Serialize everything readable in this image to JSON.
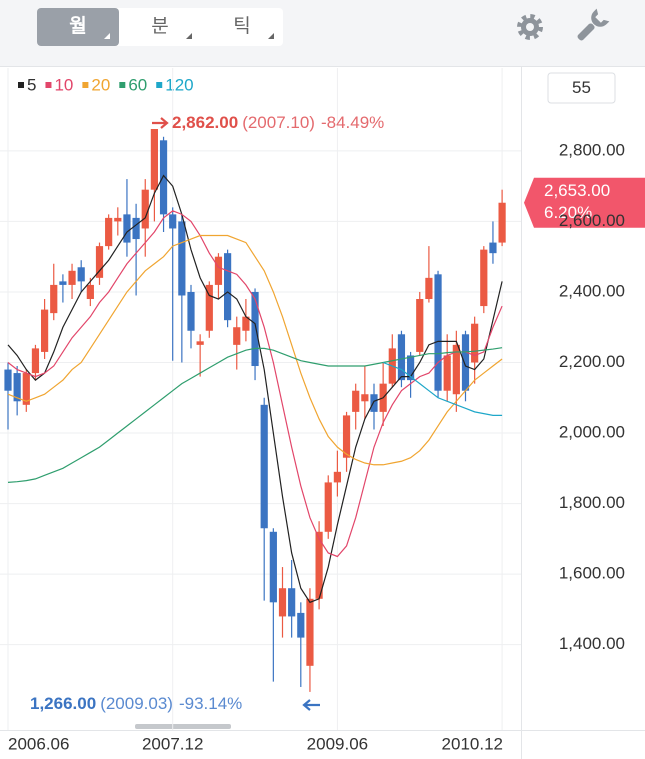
{
  "tabs": [
    "월",
    "분",
    "틱"
  ],
  "count": 55,
  "chart_data": {
    "type": "candlestick",
    "categories": [
      "2006.06",
      null,
      null,
      null,
      null,
      null,
      null,
      null,
      null,
      null,
      null,
      null,
      null,
      null,
      null,
      null,
      null,
      null,
      "2007.12",
      null,
      null,
      null,
      null,
      null,
      null,
      null,
      null,
      null,
      null,
      null,
      null,
      null,
      null,
      null,
      null,
      null,
      "2009.06",
      null,
      null,
      null,
      null,
      null,
      null,
      null,
      null,
      null,
      null,
      null,
      null,
      null,
      null,
      null,
      null,
      null,
      "2010.12"
    ],
    "open": [
      2180,
      2170,
      2080,
      2170,
      2230,
      2340,
      2430,
      2420,
      2470,
      2380,
      2440,
      2530,
      2600,
      2620,
      2610,
      2580,
      2690,
      2830,
      2620,
      2600,
      2400,
      2250,
      2290,
      2420,
      2510,
      2250,
      2290,
      2400,
      2080,
      1720,
      1480,
      1560,
      1490,
      1340,
      1530,
      1720,
      1860,
      1930,
      2060,
      2090,
      2110,
      2060,
      2140,
      2280,
      2220,
      2230,
      2380,
      2450,
      2120,
      2110,
      2280,
      2200,
      2360,
      2540,
      2540
    ],
    "high": [
      2200,
      2190,
      2180,
      2250,
      2380,
      2480,
      2450,
      2480,
      2490,
      2440,
      2540,
      2620,
      2640,
      2720,
      2650,
      2720,
      2862,
      2840,
      2640,
      2620,
      2420,
      2280,
      2430,
      2510,
      2520,
      2330,
      2380,
      2410,
      2100,
      1730,
      1620,
      1640,
      1520,
      1560,
      1750,
      1880,
      1950,
      2060,
      2140,
      2190,
      2140,
      2200,
      2280,
      2290,
      2230,
      2400,
      2530,
      2460,
      2280,
      2290,
      2290,
      2330,
      2530,
      2600,
      2690
    ],
    "low": [
      2010,
      2050,
      2060,
      2150,
      2210,
      2320,
      2370,
      2380,
      2400,
      2360,
      2420,
      2520,
      2560,
      2500,
      2390,
      2500,
      2600,
      2570,
      2205,
      2200,
      2240,
      2160,
      2270,
      2380,
      2300,
      2180,
      2260,
      2150,
      1525,
      1295,
      1420,
      1420,
      1280,
      1266,
      1500,
      1700,
      1820,
      1890,
      2010,
      2040,
      2010,
      2020,
      2130,
      2130,
      2100,
      2220,
      2370,
      2100,
      2090,
      2060,
      2090,
      2140,
      2340,
      2480,
      2530
    ],
    "close": [
      2120,
      2090,
      2170,
      2240,
      2350,
      2420,
      2420,
      2460,
      2430,
      2420,
      2530,
      2610,
      2610,
      2540,
      2550,
      2690,
      2862,
      2620,
      2580,
      2390,
      2290,
      2260,
      2420,
      2500,
      2320,
      2300,
      2330,
      2190,
      1730,
      1520,
      1560,
      1480,
      1420,
      1530,
      1720,
      1860,
      1890,
      2050,
      2120,
      2110,
      2060,
      2140,
      2240,
      2150,
      2150,
      2380,
      2440,
      2120,
      2220,
      2250,
      2120,
      2310,
      2520,
      2510,
      2653
    ],
    "up_color": "#eb5a43",
    "down_color": "#3b74c2",
    "series": [
      {
        "name": "5",
        "color": "#222222",
        "values": [
          2250,
          2220,
          2180,
          2150,
          2170,
          2230,
          2300,
          2350,
          2400,
          2430,
          2460,
          2490,
          2530,
          2570,
          2590,
          2610,
          2680,
          2730,
          2700,
          2620,
          2520,
          2440,
          2390,
          2380,
          2400,
          2380,
          2330,
          2310,
          2180,
          2000,
          1820,
          1660,
          1560,
          1520,
          1530,
          1620,
          1740,
          1850,
          1960,
          2040,
          2090,
          2100,
          2130,
          2160,
          2160,
          2200,
          2250,
          2260,
          2260,
          2260,
          2190,
          2180,
          2210,
          2320,
          2430
        ]
      },
      {
        "name": "10",
        "color": "#e2466a",
        "values": [
          2200,
          2180,
          2170,
          2160,
          2170,
          2190,
          2230,
          2270,
          2300,
          2330,
          2370,
          2400,
          2440,
          2480,
          2510,
          2540,
          2570,
          2610,
          2630,
          2620,
          2600,
          2560,
          2510,
          2470,
          2460,
          2450,
          2420,
          2380,
          2300,
          2200,
          2080,
          1960,
          1850,
          1760,
          1700,
          1660,
          1650,
          1680,
          1760,
          1860,
          1960,
          2030,
          2080,
          2120,
          2140,
          2160,
          2170,
          2200,
          2220,
          2230,
          2230,
          2220,
          2230,
          2300,
          2360
        ]
      },
      {
        "name": "20",
        "color": "#f0a531",
        "values": [
          2110,
          2100,
          2090,
          2100,
          2110,
          2130,
          2150,
          2180,
          2200,
          2240,
          2280,
          2320,
          2360,
          2400,
          2430,
          2460,
          2480,
          2500,
          2530,
          2540,
          2550,
          2560,
          2560,
          2560,
          2560,
          2550,
          2540,
          2500,
          2460,
          2400,
          2330,
          2250,
          2170,
          2100,
          2040,
          1990,
          1960,
          1940,
          1925,
          1915,
          1910,
          1910,
          1915,
          1920,
          1930,
          1950,
          1980,
          2020,
          2060,
          2090,
          2120,
          2150,
          2170,
          2190,
          2210
        ]
      },
      {
        "name": "60",
        "color": "#2f9e6e",
        "values": [
          1860,
          1862,
          1865,
          1870,
          1880,
          1890,
          1900,
          1915,
          1930,
          1945,
          1960,
          1980,
          2000,
          2020,
          2040,
          2060,
          2080,
          2100,
          2120,
          2140,
          2155,
          2170,
          2185,
          2200,
          2215,
          2225,
          2235,
          2240,
          2240,
          2235,
          2225,
          2215,
          2205,
          2200,
          2195,
          2190,
          2190,
          2190,
          2190,
          2190,
          2195,
          2200,
          2205,
          2210,
          2215,
          2220,
          2225,
          2225,
          2228,
          2230,
          2230,
          2232,
          2235,
          2238,
          2242
        ]
      },
      {
        "name": "120",
        "color": "#1ea7c9",
        "values": [
          null,
          null,
          null,
          null,
          null,
          null,
          null,
          null,
          null,
          null,
          null,
          null,
          null,
          null,
          null,
          null,
          null,
          null,
          null,
          null,
          null,
          null,
          null,
          null,
          null,
          null,
          null,
          null,
          null,
          null,
          null,
          null,
          null,
          null,
          null,
          null,
          null,
          null,
          null,
          null,
          null,
          2200,
          2190,
          2180,
          2160,
          2140,
          2120,
          2100,
          2090,
          2080,
          2070,
          2060,
          2055,
          2050,
          2050
        ]
      }
    ],
    "ylim": [
      1158,
      3035
    ],
    "yticks": [
      {
        "value": 1400,
        "label": "1,400.00"
      },
      {
        "value": 1600,
        "label": "1,600.00"
      },
      {
        "value": 1800,
        "label": "1,800.00"
      },
      {
        "value": 2000,
        "label": "2,000.00"
      },
      {
        "value": 2200,
        "label": "2,200.00"
      },
      {
        "value": 2400,
        "label": "2,400.00"
      },
      {
        "value": 2600,
        "label": "2,600.00"
      },
      {
        "value": 2800,
        "label": "2,800.00"
      }
    ],
    "grid": true,
    "annotations": [
      {
        "price": "2,862.00",
        "date": "(2007.10)",
        "change": "-84.49%"
      },
      {
        "price": "1,266.00",
        "date": "(2009.03)",
        "change": "-93.14%"
      }
    ],
    "last": {
      "price": "2,653.00",
      "change": "6.20%"
    }
  }
}
